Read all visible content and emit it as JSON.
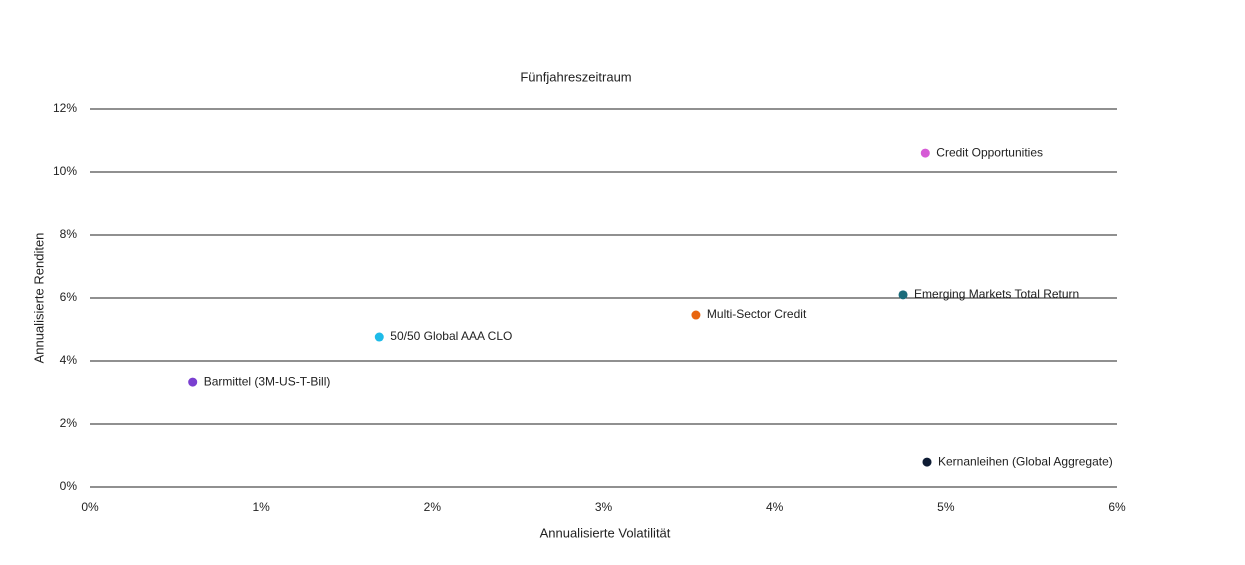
{
  "chart_data": {
    "type": "scatter",
    "title": "Fünfjahreszeitraum",
    "x_label": "Annualisierte Volatilität",
    "y_label": "Annualisierte Renditen",
    "xlim": [
      0,
      6
    ],
    "ylim": [
      0,
      12
    ],
    "xticks": [
      {
        "value": 0,
        "label": "0%"
      },
      {
        "value": 1,
        "label": "1%"
      },
      {
        "value": 2,
        "label": "2%"
      },
      {
        "value": 3,
        "label": "3%"
      },
      {
        "value": 4,
        "label": "4%"
      },
      {
        "value": 5,
        "label": "5%"
      },
      {
        "value": 6,
        "label": "6%"
      }
    ],
    "yticks": [
      {
        "value": 0,
        "label": "0%"
      },
      {
        "value": 2,
        "label": "2%"
      },
      {
        "value": 4,
        "label": "4%"
      },
      {
        "value": 6,
        "label": "6%"
      },
      {
        "value": 8,
        "label": "8%"
      },
      {
        "value": 10,
        "label": "10%"
      },
      {
        "value": 12,
        "label": "12%"
      }
    ],
    "grid": true,
    "series": [
      {
        "name": "Credit Opportunities",
        "color": "#d65bd6",
        "x": [
          4.88
        ],
        "values": [
          10.6
        ]
      },
      {
        "name": "Emerging Markets Total Return",
        "color": "#1a6b7a",
        "x": [
          4.75
        ],
        "values": [
          6.1
        ]
      },
      {
        "name": "Multi-Sector Credit",
        "color": "#e8650f",
        "x": [
          3.54
        ],
        "values": [
          5.46
        ]
      },
      {
        "name": "50/50 Global AAA CLO",
        "color": "#1ebbe8",
        "x": [
          1.69
        ],
        "values": [
          4.76
        ]
      },
      {
        "name": "Barmittel (3M-US-T-Bill)",
        "color": "#7a3fd0",
        "x": [
          0.6
        ],
        "values": [
          3.33
        ]
      },
      {
        "name": "Kernanleihen (Global Aggregate)",
        "color": "#0d1b33",
        "x": [
          4.89
        ],
        "values": [
          0.79
        ]
      }
    ]
  }
}
